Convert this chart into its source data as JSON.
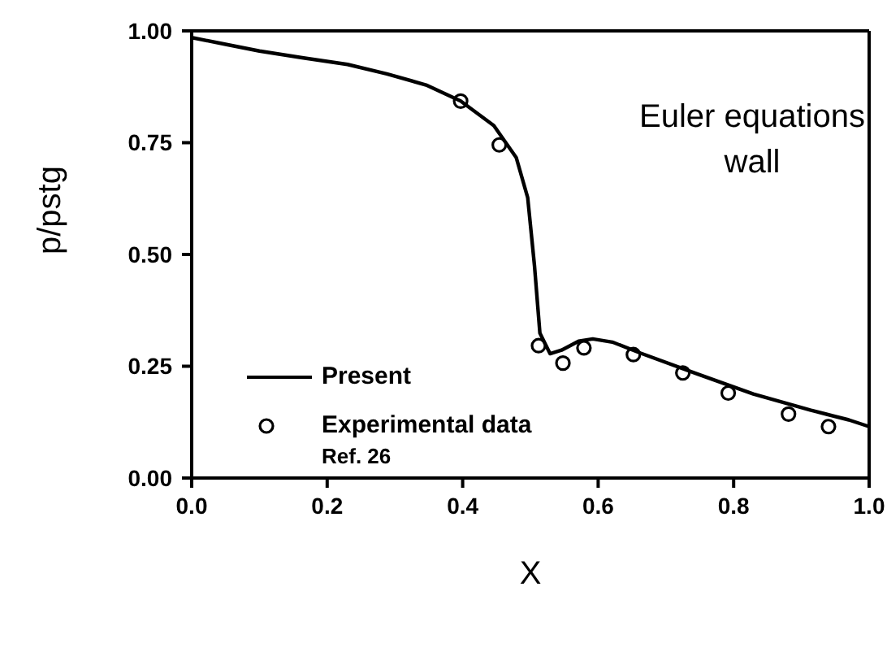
{
  "chart_data": {
    "type": "line",
    "title": "Euler equations wall",
    "xlabel": "X",
    "ylabel": "p/pstg",
    "xlim": [
      0,
      1
    ],
    "ylim": [
      0,
      1
    ],
    "xticks": [
      {
        "value": 0,
        "label": "0.0"
      },
      {
        "value": 0.2,
        "label": "0.2"
      },
      {
        "value": 0.4,
        "label": "0.4"
      },
      {
        "value": 0.6,
        "label": "0.6"
      },
      {
        "value": 0.8,
        "label": "0.8"
      },
      {
        "value": 1,
        "label": "1.0"
      }
    ],
    "yticks": [
      {
        "value": 0,
        "label": "0.00"
      },
      {
        "value": 0.25,
        "label": "0.25"
      },
      {
        "value": 0.5,
        "label": "0.50"
      },
      {
        "value": 0.75,
        "label": "0.75"
      },
      {
        "value": 1,
        "label": "1.00"
      }
    ],
    "legend": "bottom left",
    "annotations": [
      "Ref. 26"
    ],
    "series": [
      {
        "name": "Present",
        "color": "#000000",
        "marker": "none",
        "line_style": "solid",
        "x": [
          0,
          0.05,
          0.1,
          0.163,
          0.23,
          0.288,
          0.346,
          0.397,
          0.446,
          0.479,
          0.496,
          0.506,
          0.514,
          0.529,
          0.546,
          0.571,
          0.592,
          0.621,
          0.663,
          0.746,
          0.829,
          0.913,
          0.97,
          1
        ],
        "values": [
          0.985,
          0.97,
          0.955,
          0.94,
          0.925,
          0.904,
          0.879,
          0.843,
          0.788,
          0.717,
          0.627,
          0.475,
          0.324,
          0.278,
          0.286,
          0.306,
          0.311,
          0.304,
          0.279,
          0.233,
          0.188,
          0.152,
          0.13,
          0.115
        ]
      },
      {
        "name": "Experimental data",
        "type": "scatter",
        "color": "#000000",
        "marker": "circle",
        "x": [
          0.397,
          0.454,
          0.512,
          0.548,
          0.579,
          0.652,
          0.725,
          0.792,
          0.881,
          0.94
        ],
        "values": [
          0.843,
          0.745,
          0.296,
          0.257,
          0.291,
          0.276,
          0.235,
          0.19,
          0.143,
          0.115
        ]
      }
    ]
  }
}
